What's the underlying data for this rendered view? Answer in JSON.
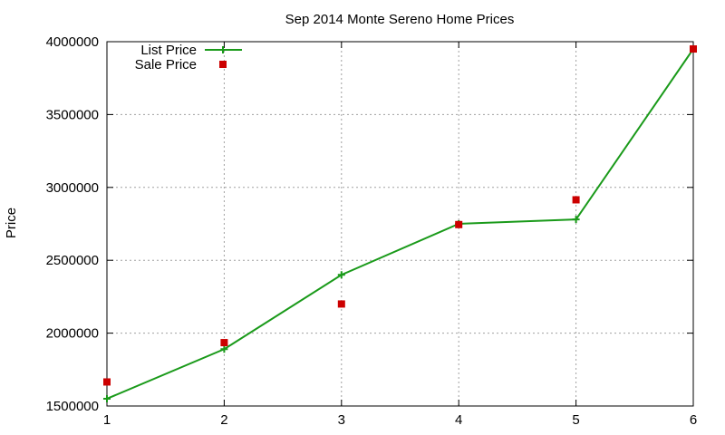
{
  "chart_data": {
    "type": "line",
    "title": "Sep 2014 Monte Sereno Home Prices",
    "xlabel": "",
    "ylabel": "Price",
    "xlim": [
      1,
      6
    ],
    "ylim": [
      1500000,
      4000000
    ],
    "xticks": [
      "1",
      "2",
      "3",
      "4",
      "5",
      "6"
    ],
    "yticks": [
      "1500000",
      "2000000",
      "2500000",
      "3000000",
      "3500000",
      "4000000"
    ],
    "grid": true,
    "legend_position": "top-left",
    "x": [
      1,
      2,
      3,
      4,
      5,
      6
    ],
    "series": [
      {
        "name": "List Price",
        "style": "line-with-plus-markers",
        "color": "#1a9a1a",
        "values": [
          1550000,
          1890000,
          2400000,
          2750000,
          2780000,
          3950000
        ]
      },
      {
        "name": "Sale Price",
        "style": "square-markers",
        "color": "#cc0000",
        "values": [
          1665000,
          1935000,
          2200000,
          2745000,
          2915000,
          3950000
        ]
      }
    ]
  }
}
